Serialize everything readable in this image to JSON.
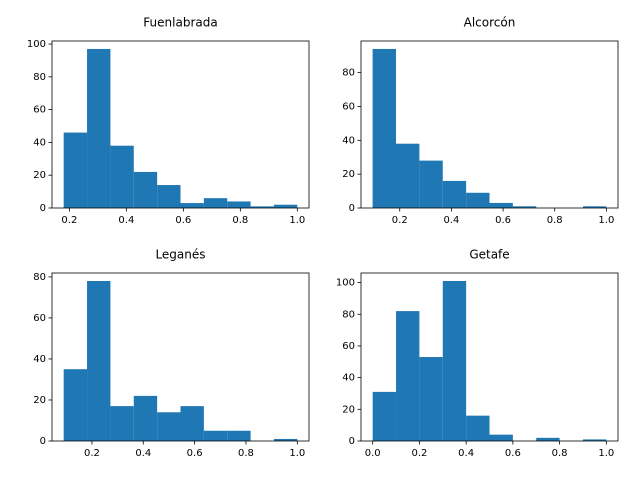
{
  "chart_data": [
    {
      "type": "histogram",
      "title": "Fuenlabrada",
      "color": "#1f77b4",
      "bins": [
        0.18,
        0.262,
        0.344,
        0.426,
        0.508,
        0.59,
        0.672,
        0.754,
        0.836,
        0.918,
        1.0
      ],
      "values": [
        46,
        97,
        38,
        22,
        14,
        3,
        6,
        4,
        1,
        2
      ],
      "xlim": [
        0.139,
        1.041
      ],
      "xticks": [
        0.2,
        0.4,
        0.6,
        0.8,
        {
          "value": 1,
          "label": "1.0"
        }
      ],
      "ylim": [
        0,
        101.85
      ],
      "yticks": [
        0,
        20,
        40,
        60,
        80,
        100
      ]
    },
    {
      "type": "histogram",
      "title": "Alcorcón",
      "color": "#1f77b4",
      "bins": [
        0.095,
        0.1855,
        0.276,
        0.3665,
        0.457,
        0.5475,
        0.638,
        0.7285,
        0.819,
        0.9095,
        1.0
      ],
      "values": [
        94,
        38,
        28,
        16,
        9,
        3,
        1,
        0,
        0,
        1
      ],
      "xlim": [
        0.05,
        1.045
      ],
      "xticks": [
        0.2,
        0.4,
        0.6,
        0.8,
        {
          "value": 1,
          "label": "1.0"
        }
      ],
      "ylim": [
        0,
        98.7
      ],
      "yticks": [
        0,
        20,
        40,
        60,
        80
      ]
    },
    {
      "type": "histogram",
      "title": "Leganés",
      "color": "#1f77b4",
      "bins": [
        0.09,
        0.181,
        0.272,
        0.363,
        0.454,
        0.545,
        0.636,
        0.727,
        0.818,
        0.909,
        1.0
      ],
      "values": [
        35,
        78,
        17,
        22,
        14,
        17,
        5,
        5,
        0,
        1
      ],
      "xlim": [
        0.0445,
        1.0455
      ],
      "xticks": [
        0.2,
        0.4,
        0.6,
        0.8,
        {
          "value": 1,
          "label": "1.0"
        }
      ],
      "ylim": [
        0,
        81.9
      ],
      "yticks": [
        0,
        20,
        40,
        60,
        80
      ]
    },
    {
      "type": "histogram",
      "title": "Getafe",
      "color": "#1f77b4",
      "bins": [
        0,
        0.1,
        0.2,
        0.3,
        0.4,
        0.5,
        0.6,
        0.7,
        0.8,
        0.9,
        1.0
      ],
      "values": [
        31,
        82,
        53,
        101,
        16,
        4,
        0,
        2,
        0,
        1
      ],
      "xlim": [
        -0.05,
        1.05
      ],
      "xticks": [
        {
          "value": 0,
          "label": "0.0"
        },
        0.2,
        0.4,
        0.6,
        0.8,
        {
          "value": 1,
          "label": "1.0"
        }
      ],
      "ylim": [
        0,
        106.05
      ],
      "yticks": [
        0,
        20,
        40,
        60,
        80,
        100
      ]
    }
  ]
}
